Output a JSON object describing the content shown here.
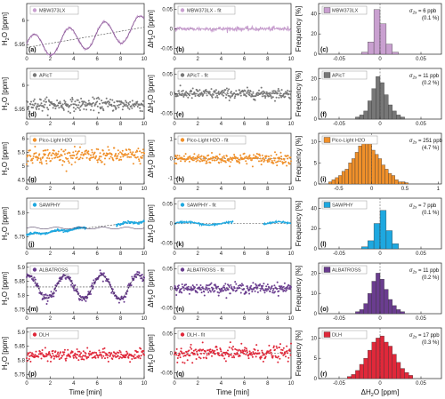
{
  "chart_data": {
    "type": "multi-panel",
    "x_axis_label": "Time [min]",
    "ylabel_conc": "H2O [ppm]",
    "ylabel_resid": "ΔH2O [ppm]",
    "ylabel_hist": "Frequency [%]",
    "xlabel_hist": "ΔH2O [ppm]",
    "fit_suffix": " - fit",
    "sigma_symbol": "σ",
    "sigma_sub": "2s",
    "panel_letters": [
      "(a)",
      "(b)",
      "(c)",
      "(d)",
      "(e)",
      "(f)",
      "(g)",
      "(h)",
      "(i)",
      "(j)",
      "(k)",
      "(l)",
      "(m)",
      "(n)",
      "(o)",
      "(p)",
      "(q)",
      "(r)"
    ],
    "rows": [
      {
        "instrument": "MBW373LX",
        "color": "#c9a0d0",
        "style": "line",
        "conc_yticks": [
          "6",
          "5.95"
        ],
        "conc_ytick_vals": [
          6.0,
          5.95
        ],
        "conc_ylim": [
          5.93,
          6.035
        ],
        "resid_yticks": [
          "0.05",
          "0",
          "-0.05"
        ],
        "resid_ytick_vals": [
          0.05,
          0,
          -0.05
        ],
        "resid_ylim": [
          -0.065,
          0.065
        ],
        "hist_xticks": [
          "-0.05",
          "0",
          "0.05"
        ],
        "hist_xtick_vals": [
          -0.05,
          0,
          0.05
        ],
        "hist_xlim": [
          -0.075,
          0.075
        ],
        "hist_yticks": [
          "40",
          "20",
          "0"
        ],
        "hist_ytick_vals": [
          40,
          20,
          0
        ],
        "hist_ylim": [
          0,
          50
        ],
        "sigma": "6 ppb",
        "percent": "(0.1 %)",
        "conc_model": {
          "base": 5.965,
          "slope": 0.0042,
          "amp": 0.025,
          "period": 3.0,
          "noise": 0.0015,
          "phase": 0.3
        },
        "resid_noise": 0.003,
        "hist": {
          "edges_start": -0.0225,
          "bin_width": 0.0075,
          "freq": [
            2,
            12,
            44,
            30,
            10,
            2
          ]
        }
      },
      {
        "instrument": "APicT",
        "color": "#777777",
        "style": "dots",
        "conc_yticks": [
          "6",
          "5.95"
        ],
        "conc_ytick_vals": [
          6.0,
          5.95
        ],
        "conc_ylim": [
          5.93,
          6.035
        ],
        "resid_yticks": [
          "0.05",
          "0",
          "-0.05"
        ],
        "resid_ytick_vals": [
          0.05,
          0,
          -0.05
        ],
        "resid_ylim": [
          -0.065,
          0.065
        ],
        "hist_xticks": [
          "-0.05",
          "0",
          "0.05"
        ],
        "hist_xtick_vals": [
          -0.05,
          0,
          0.05
        ],
        "hist_xlim": [
          -0.075,
          0.075
        ],
        "hist_yticks": [
          "20",
          "10",
          "0"
        ],
        "hist_ytick_vals": [
          20,
          10,
          0
        ],
        "hist_ylim": [
          0,
          25
        ],
        "sigma": "11 ppb",
        "percent": "(0.2 %)",
        "conc_model": {
          "base": 5.96,
          "slope": 0,
          "amp": 0,
          "period": 1,
          "noise": 0.0065,
          "phase": 0
        },
        "resid_noise": 0.0065,
        "hist": {
          "edges_start": -0.03,
          "bin_width": 0.005,
          "freq": [
            1,
            2,
            4,
            9,
            15,
            21,
            18,
            12,
            7,
            4,
            2,
            1
          ]
        }
      },
      {
        "instrument": "Pico-Light H2O",
        "color": "#f0902a",
        "style": "dots",
        "conc_yticks": [
          "6",
          "5.5",
          "5",
          "4.5"
        ],
        "conc_ytick_vals": [
          6.0,
          5.5,
          5.0,
          4.5
        ],
        "conc_ylim": [
          4.35,
          6.2
        ],
        "resid_yticks": [
          "1",
          "0",
          "-1"
        ],
        "resid_ytick_vals": [
          1,
          0,
          -1
        ],
        "resid_ylim": [
          -1.3,
          1.3
        ],
        "hist_xticks": [
          "-0.5",
          "0",
          "0.5",
          "1"
        ],
        "hist_xtick_vals": [
          -0.5,
          0,
          0.5,
          1
        ],
        "hist_xlim": [
          -0.8,
          1.05
        ],
        "hist_yticks": [
          "10",
          "5",
          "0"
        ],
        "hist_ytick_vals": [
          10,
          5,
          0
        ],
        "hist_ylim": [
          0,
          12
        ],
        "sigma": "251 ppb",
        "percent": "(4.7 %)",
        "conc_model": {
          "base": 5.38,
          "slope": 0,
          "amp": 0,
          "period": 1,
          "noise": 0.14,
          "phase": 0
        },
        "resid_noise": 0.14,
        "hist": {
          "edges_start": -0.65,
          "bin_width": 0.05,
          "freq": [
            0.5,
            1,
            1.5,
            2,
            3,
            3.5,
            5,
            6,
            7.5,
            9,
            10,
            10.5,
            9.5,
            8,
            7,
            6,
            4.5,
            3.5,
            2.5,
            2,
            1,
            0.5,
            0.5,
            0.3
          ]
        }
      },
      {
        "instrument": "SAWPHY",
        "color": "#1ea8e0",
        "style": "segmented",
        "conc_yticks": [
          "5.8",
          "5.75"
        ],
        "conc_ytick_vals": [
          5.8,
          5.75
        ],
        "conc_ylim": [
          5.725,
          5.83
        ],
        "resid_yticks": [
          "0.05",
          "0",
          "-0.05"
        ],
        "resid_ytick_vals": [
          0.05,
          0,
          -0.05
        ],
        "resid_ylim": [
          -0.065,
          0.065
        ],
        "hist_xticks": [
          "-0.05",
          "0",
          "0.05"
        ],
        "hist_xtick_vals": [
          -0.05,
          0,
          0.05
        ],
        "hist_xlim": [
          -0.075,
          0.075
        ],
        "hist_yticks": [
          "40",
          "20",
          "0"
        ],
        "hist_ytick_vals": [
          40,
          20,
          0
        ],
        "hist_ylim": [
          0,
          50
        ],
        "sigma": "7 ppb",
        "percent": "(0.1 %)",
        "conc_model": {
          "base": 5.768,
          "slope": 0.0028,
          "amp": 0.002,
          "period": 2.0,
          "noise": 0.0012,
          "phase": 0,
          "gap": [
            5.05,
            7.6
          ]
        },
        "resid_noise": 0.002,
        "hist": {
          "edges_start": -0.0225,
          "bin_width": 0.0075,
          "freq": [
            2,
            8,
            25,
            38,
            18,
            5
          ]
        }
      },
      {
        "instrument": "ALBATROSS",
        "color": "#6a3d8f",
        "style": "dots",
        "conc_yticks": [
          "5.9",
          "5.85",
          "5.8",
          "5.75"
        ],
        "conc_ytick_vals": [
          5.9,
          5.85,
          5.8,
          5.75
        ],
        "conc_ylim": [
          5.735,
          5.915
        ],
        "resid_yticks": [
          "0.05",
          "0",
          "-0.05"
        ],
        "resid_ytick_vals": [
          0.05,
          0,
          -0.05
        ],
        "resid_ylim": [
          -0.065,
          0.065
        ],
        "hist_xticks": [
          "-0.05",
          "0",
          "0.05"
        ],
        "hist_xtick_vals": [
          -0.05,
          0,
          0.05
        ],
        "hist_xlim": [
          -0.075,
          0.075
        ],
        "hist_yticks": [
          "20",
          "10",
          "0"
        ],
        "hist_ytick_vals": [
          20,
          10,
          0
        ],
        "hist_ylim": [
          0,
          25
        ],
        "sigma": "11 ppb",
        "percent": "(0.2 %)",
        "conc_model": {
          "base": 5.83,
          "slope": 0,
          "amp": 0.042,
          "period": 3.1,
          "noise": 0.007,
          "phase": 1.2
        },
        "resid_noise": 0.0065,
        "hist": {
          "edges_start": -0.03,
          "bin_width": 0.005,
          "freq": [
            1,
            2,
            5,
            10,
            16,
            20,
            17,
            12,
            7,
            4,
            2,
            1
          ]
        }
      },
      {
        "instrument": "DLH",
        "color": "#e0283a",
        "style": "dots",
        "conc_yticks": [
          "5.9",
          "5.85",
          "5.8",
          "5.75"
        ],
        "conc_ytick_vals": [
          5.9,
          5.85,
          5.8,
          5.75
        ],
        "conc_ylim": [
          5.735,
          5.915
        ],
        "resid_yticks": [
          "0.05",
          "0",
          "-0.05"
        ],
        "resid_ytick_vals": [
          0.05,
          0,
          -0.05
        ],
        "resid_ylim": [
          -0.065,
          0.065
        ],
        "hist_xticks": [
          "-0.05",
          "0",
          "0.05"
        ],
        "hist_xtick_vals": [
          -0.05,
          0,
          0.05
        ],
        "hist_xlim": [
          -0.075,
          0.075
        ],
        "hist_yticks": [
          "10",
          "5",
          "0"
        ],
        "hist_ytick_vals": [
          10,
          5,
          0
        ],
        "hist_ylim": [
          0,
          12.5
        ],
        "sigma": "17 ppb",
        "percent": "(0.3 %)",
        "conc_model": {
          "base": 5.818,
          "slope": 0,
          "amp": 0,
          "period": 1,
          "noise": 0.0095,
          "phase": 0
        },
        "resid_noise": 0.0095,
        "hist": {
          "edges_start": -0.04,
          "bin_width": 0.005,
          "freq": [
            0.5,
            1,
            2,
            3.5,
            5,
            7,
            9,
            10,
            10.5,
            9,
            8,
            6,
            4,
            2.5,
            1.5,
            0.8
          ]
        }
      }
    ],
    "time_xticks": [
      "0",
      "2",
      "4",
      "6",
      "8",
      "10"
    ],
    "time_xtick_vals": [
      0,
      2,
      4,
      6,
      8,
      10
    ],
    "time_xlim": [
      0,
      10
    ]
  }
}
